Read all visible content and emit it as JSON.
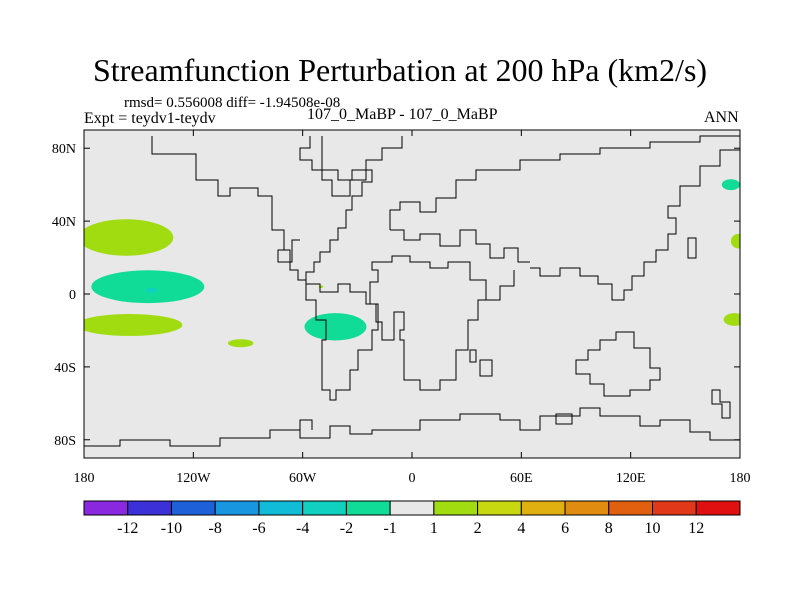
{
  "header": {
    "title": "Streamfunction Perturbation at 200 hPa (km2/s)",
    "stats": "rmsd= 0.556008 diff= -1.94508e-08",
    "expt": "Expt = teydv1-teydv",
    "case": "107_0_MaBP - 107_0_MaBP",
    "season": "ANN"
  },
  "colors": {
    "background": "#e8e8e8",
    "coast": "#000000"
  },
  "chart_data": {
    "type": "heatmap",
    "title": "Streamfunction Perturbation at 200 hPa (km2/s)",
    "xlabel": "",
    "ylabel": "",
    "xlim": [
      -180,
      180
    ],
    "ylim": [
      -90,
      90
    ],
    "x_ticks": [
      {
        "value": -180,
        "label": "180"
      },
      {
        "value": -120,
        "label": "120W"
      },
      {
        "value": -60,
        "label": "60W"
      },
      {
        "value": 0,
        "label": "0"
      },
      {
        "value": 60,
        "label": "60E"
      },
      {
        "value": 120,
        "label": "120E"
      },
      {
        "value": 180,
        "label": "180"
      }
    ],
    "y_ticks": [
      {
        "value": 80,
        "label": "80N"
      },
      {
        "value": 40,
        "label": "40N"
      },
      {
        "value": 0,
        "label": "0"
      },
      {
        "value": -40,
        "label": "40S"
      },
      {
        "value": -80,
        "label": "80S"
      }
    ],
    "colorbar": {
      "colors": [
        "#8a28e0",
        "#3c30d8",
        "#1e60d8",
        "#1896e0",
        "#10bcd8",
        "#10d0c0",
        "#10dc98",
        "#e8e8e8",
        "#a0dc10",
        "#c8d810",
        "#e0b010",
        "#e08c10",
        "#e06010",
        "#e03818",
        "#e01010"
      ],
      "labels": [
        "-12",
        "-10",
        "-8",
        "-6",
        "-4",
        "-2",
        "-1",
        "1",
        "2",
        "4",
        "6",
        "8",
        "10",
        "12"
      ]
    },
    "features": [
      {
        "kind": "ellipse",
        "cx": -157,
        "cy": 31,
        "rx": 26,
        "ry": 10,
        "level": "2",
        "color": "#a0dc10"
      },
      {
        "kind": "ellipse",
        "cx": -145,
        "cy": 4,
        "rx": 31,
        "ry": 9,
        "level": "-1",
        "color": "#10dc98"
      },
      {
        "kind": "ellipse",
        "cx": -143,
        "cy": 2,
        "rx": 3,
        "ry": 1.5,
        "level": "-2",
        "color": "#10d0c0"
      },
      {
        "kind": "ellipse",
        "cx": -155,
        "cy": -17,
        "rx": 29,
        "ry": 6,
        "level": "2",
        "color": "#a0dc10"
      },
      {
        "kind": "ellipse",
        "cx": -94,
        "cy": -27,
        "rx": 7,
        "ry": 2.2,
        "level": "2",
        "color": "#a0dc10"
      },
      {
        "kind": "ellipse",
        "cx": -42,
        "cy": -18,
        "rx": 17,
        "ry": 7.5,
        "level": "-1",
        "color": "#10dc98"
      },
      {
        "kind": "ellipse",
        "cx": -50,
        "cy": 4,
        "rx": 1.2,
        "ry": 0.7,
        "level": "2",
        "color": "#a0dc10"
      },
      {
        "kind": "ellipse",
        "cx": 175,
        "cy": 60,
        "rx": 5,
        "ry": 3,
        "level": "-1",
        "color": "#10dc98"
      },
      {
        "kind": "ellipse",
        "cx": 179,
        "cy": 29,
        "rx": 4,
        "ry": 4,
        "level": "2",
        "color": "#a0dc10"
      },
      {
        "kind": "ellipse",
        "cx": 177,
        "cy": -14,
        "rx": 6,
        "ry": 3.5,
        "level": "2",
        "color": "#a0dc10"
      }
    ]
  }
}
